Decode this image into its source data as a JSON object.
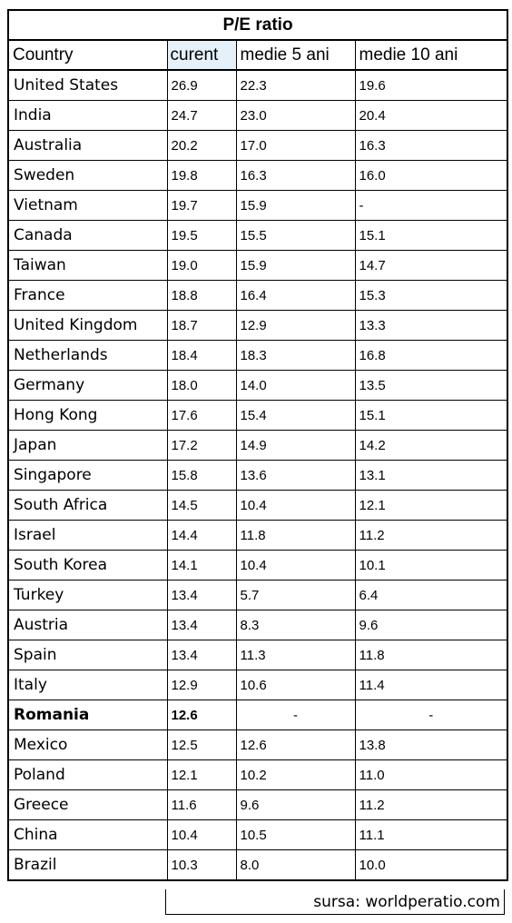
{
  "chart_data": {
    "type": "table",
    "title": "P/E ratio",
    "columns": [
      "Country",
      "curent",
      "medie 5 ani",
      "medie 10 ani"
    ],
    "rows": [
      {
        "country": "United States",
        "curent": "26.9",
        "medie_5_ani": "22.3",
        "medie_10_ani": "19.6"
      },
      {
        "country": "India",
        "curent": "24.7",
        "medie_5_ani": "23.0",
        "medie_10_ani": "20.4"
      },
      {
        "country": "Australia",
        "curent": "20.2",
        "medie_5_ani": "17.0",
        "medie_10_ani": "16.3"
      },
      {
        "country": "Sweden",
        "curent": "19.8",
        "medie_5_ani": "16.3",
        "medie_10_ani": "16.0"
      },
      {
        "country": "Vietnam",
        "curent": "19.7",
        "medie_5_ani": "15.9",
        "medie_10_ani": "-"
      },
      {
        "country": "Canada",
        "curent": "19.5",
        "medie_5_ani": "15.5",
        "medie_10_ani": "15.1"
      },
      {
        "country": "Taiwan",
        "curent": "19.0",
        "medie_5_ani": "15.9",
        "medie_10_ani": "14.7"
      },
      {
        "country": "France",
        "curent": "18.8",
        "medie_5_ani": "16.4",
        "medie_10_ani": "15.3"
      },
      {
        "country": "United Kingdom",
        "curent": "18.7",
        "medie_5_ani": "12.9",
        "medie_10_ani": "13.3"
      },
      {
        "country": "Netherlands",
        "curent": "18.4",
        "medie_5_ani": "18.3",
        "medie_10_ani": "16.8"
      },
      {
        "country": "Germany",
        "curent": "18.0",
        "medie_5_ani": "14.0",
        "medie_10_ani": "13.5"
      },
      {
        "country": "Hong Kong",
        "curent": "17.6",
        "medie_5_ani": "15.4",
        "medie_10_ani": "15.1"
      },
      {
        "country": "Japan",
        "curent": "17.2",
        "medie_5_ani": "14.9",
        "medie_10_ani": "14.2"
      },
      {
        "country": "Singapore",
        "curent": "15.8",
        "medie_5_ani": "13.6",
        "medie_10_ani": "13.1"
      },
      {
        "country": "South Africa",
        "curent": "14.5",
        "medie_5_ani": "10.4",
        "medie_10_ani": "12.1"
      },
      {
        "country": "Israel",
        "curent": "14.4",
        "medie_5_ani": "11.8",
        "medie_10_ani": "11.2"
      },
      {
        "country": "South Korea",
        "curent": "14.1",
        "medie_5_ani": "10.4",
        "medie_10_ani": "10.1"
      },
      {
        "country": "Turkey",
        "curent": "13.4",
        "medie_5_ani": "5.7",
        "medie_10_ani": "6.4"
      },
      {
        "country": "Austria",
        "curent": "13.4",
        "medie_5_ani": "8.3",
        "medie_10_ani": "9.6"
      },
      {
        "country": "Spain",
        "curent": "13.4",
        "medie_5_ani": "11.3",
        "medie_10_ani": "11.8"
      },
      {
        "country": "Italy",
        "curent": "12.9",
        "medie_5_ani": "10.6",
        "medie_10_ani": "11.4"
      },
      {
        "country": "Romania",
        "curent": "12.6",
        "medie_5_ani": "-",
        "medie_10_ani": "-",
        "highlight": true
      },
      {
        "country": "Mexico",
        "curent": "12.5",
        "medie_5_ani": "12.6",
        "medie_10_ani": "13.8"
      },
      {
        "country": "Poland",
        "curent": "12.1",
        "medie_5_ani": "10.2",
        "medie_10_ani": "11.0"
      },
      {
        "country": "Greece",
        "curent": "11.6",
        "medie_5_ani": "9.6",
        "medie_10_ani": "11.2"
      },
      {
        "country": "China",
        "curent": "10.4",
        "medie_5_ani": "10.5",
        "medie_10_ani": "11.1"
      },
      {
        "country": "Brazil",
        "curent": "10.3",
        "medie_5_ani": "8.0",
        "medie_10_ani": "10.0"
      }
    ],
    "source": "sursa: worldperatio.com",
    "header_highlight_color": "#e6f0f8"
  }
}
